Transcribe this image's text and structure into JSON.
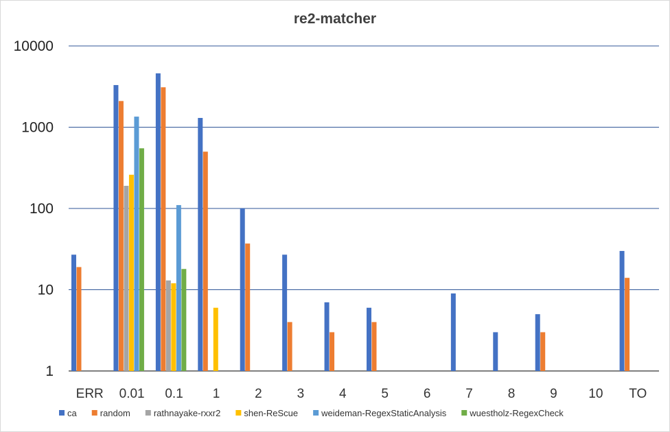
{
  "chart_data": {
    "type": "bar",
    "title": "re2-matcher",
    "xlabel": "",
    "ylabel": "",
    "yscale": "log",
    "ylim": [
      1,
      10000
    ],
    "yticks": [
      {
        "value": 1,
        "label": "1"
      },
      {
        "value": 10,
        "label": "10"
      },
      {
        "value": 100,
        "label": "100"
      },
      {
        "value": 1000,
        "label": "1000"
      },
      {
        "value": 10000,
        "label": "10000"
      }
    ],
    "grid": true,
    "legend_position": "bottom",
    "categories": [
      "ERR",
      "0.01",
      "0.1",
      "1",
      "2",
      "3",
      "4",
      "5",
      "6",
      "7",
      "8",
      "9",
      "10",
      "TO"
    ],
    "series": [
      {
        "name": "ca",
        "color": "#4472C4",
        "values": [
          27,
          3300,
          4600,
          1300,
          100,
          27,
          7,
          6,
          null,
          9,
          3,
          5,
          null,
          30
        ]
      },
      {
        "name": "random",
        "color": "#ED7D31",
        "values": [
          19,
          2100,
          3100,
          500,
          37,
          4,
          3,
          4,
          null,
          null,
          null,
          3,
          null,
          14
        ]
      },
      {
        "name": "rathnayake-rxxr2",
        "color": "#A5A5A5",
        "values": [
          null,
          190,
          13,
          null,
          null,
          null,
          null,
          null,
          null,
          null,
          null,
          null,
          null,
          null
        ]
      },
      {
        "name": "shen-ReScue",
        "color": "#FFC000",
        "values": [
          null,
          260,
          12,
          6,
          null,
          null,
          null,
          null,
          null,
          null,
          null,
          null,
          null,
          null
        ]
      },
      {
        "name": "weideman-RegexStaticAnalysis",
        "color": "#5B9BD5",
        "values": [
          null,
          1350,
          110,
          null,
          null,
          null,
          null,
          null,
          null,
          null,
          null,
          null,
          null,
          null
        ]
      },
      {
        "name": "wuestholz-RegexCheck",
        "color": "#70AD47",
        "values": [
          null,
          550,
          18,
          null,
          null,
          null,
          null,
          null,
          null,
          null,
          null,
          null,
          null,
          null
        ]
      }
    ]
  }
}
